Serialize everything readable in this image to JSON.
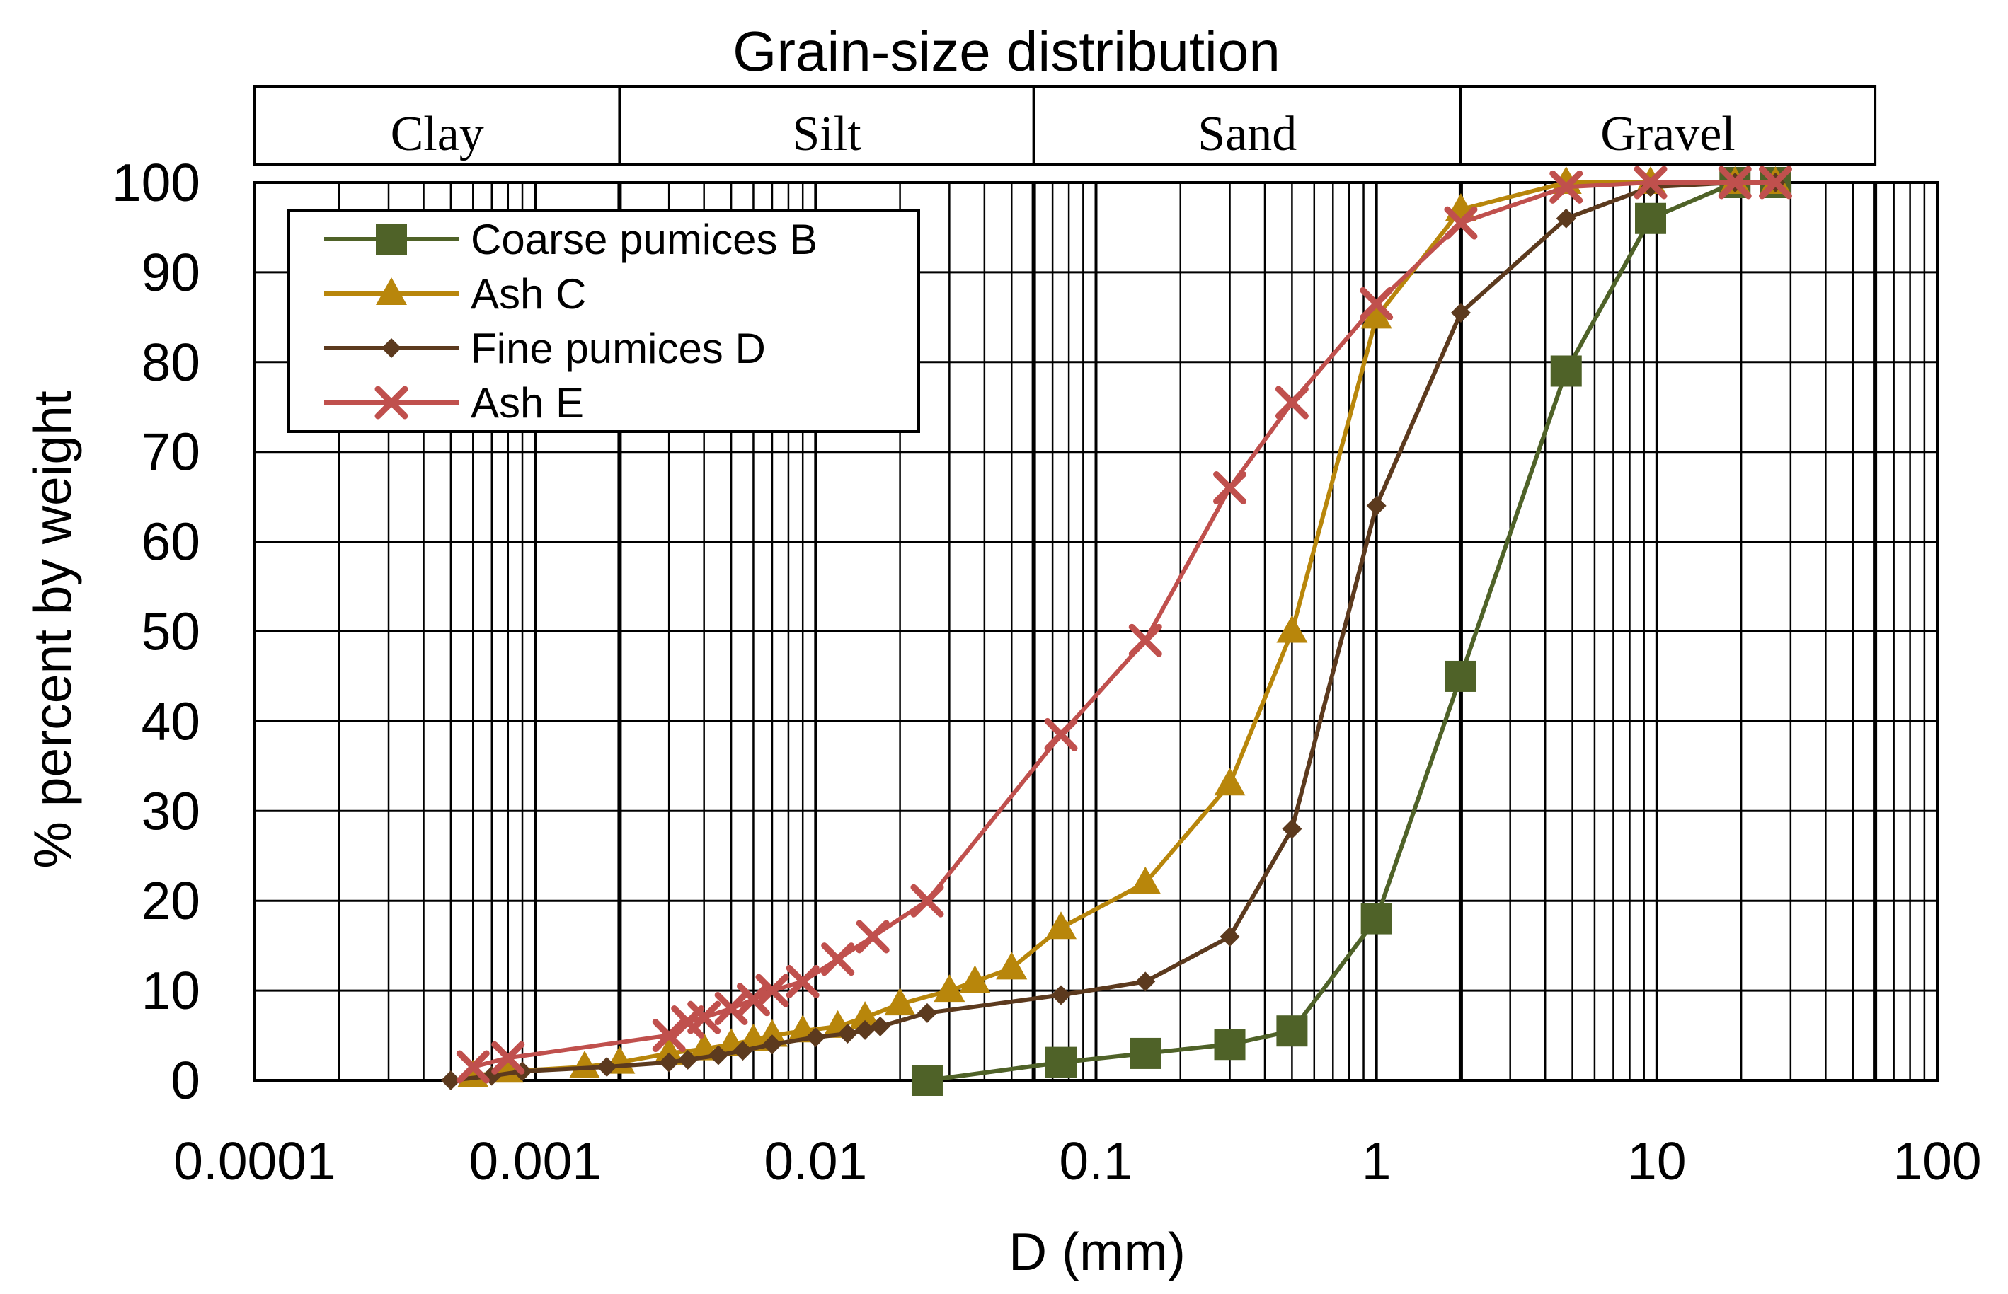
{
  "chart_data": {
    "type": "line",
    "title": "Grain-size distribution",
    "xlabel": "D (mm)",
    "ylabel": "% percent by weight",
    "x_scale": "log",
    "xlim": [
      0.0001,
      100
    ],
    "ylim": [
      0,
      100
    ],
    "x_ticks": [
      "0.0001",
      "0.001",
      "0.01",
      "0.1",
      "1",
      "10",
      "100"
    ],
    "y_ticks": [
      "0",
      "10",
      "20",
      "30",
      "40",
      "50",
      "60",
      "70",
      "80",
      "90",
      "100"
    ],
    "grid": true,
    "legend_position": "top-left",
    "bands": [
      {
        "label": "Clay",
        "from": 0.0001,
        "to": 0.002
      },
      {
        "label": "Silt",
        "from": 0.002,
        "to": 0.06
      },
      {
        "label": "Sand",
        "from": 0.06,
        "to": 2
      },
      {
        "label": "Gravel",
        "from": 2,
        "to": 60
      }
    ],
    "series": [
      {
        "name": "Coarse pumices B",
        "color": "#4f6228",
        "marker": "square",
        "x": [
          0.025,
          0.075,
          0.15,
          0.3,
          0.5,
          1,
          2,
          4.75,
          9.5,
          19,
          26.5
        ],
        "y": [
          0,
          2,
          3,
          4,
          5.5,
          18,
          45,
          79,
          96,
          100,
          100
        ]
      },
      {
        "name": "Ash C",
        "color": "#b8860b",
        "marker": "triangle",
        "x": [
          0.0006,
          0.0008,
          0.0015,
          0.002,
          0.003,
          0.004,
          0.005,
          0.006,
          0.007,
          0.009,
          0.012,
          0.015,
          0.02,
          0.03,
          0.037,
          0.05,
          0.075,
          0.15,
          0.3,
          0.5,
          1,
          2,
          4.75,
          9.5,
          19,
          26.5
        ],
        "y": [
          0.5,
          1,
          1.5,
          2,
          3,
          3.5,
          4,
          4.5,
          5,
          5.5,
          6,
          7,
          8.5,
          10,
          11,
          12.5,
          17,
          22,
          33,
          50,
          85,
          97,
          100,
          100,
          100,
          100
        ]
      },
      {
        "name": "Fine pumices D",
        "color": "#5c3a1e",
        "marker": "diamond",
        "x": [
          0.0005,
          0.0007,
          0.0009,
          0.0018,
          0.003,
          0.0035,
          0.0045,
          0.0055,
          0.007,
          0.01,
          0.013,
          0.015,
          0.017,
          0.025,
          0.075,
          0.15,
          0.3,
          0.5,
          1,
          2,
          4.75,
          9.5,
          19,
          26.5
        ],
        "y": [
          0,
          0.5,
          1,
          1.5,
          2,
          2.3,
          2.8,
          3.3,
          4,
          4.8,
          5.2,
          5.6,
          6,
          7.5,
          9.5,
          11,
          16,
          28,
          64,
          85.5,
          96,
          99.5,
          100,
          100
        ]
      },
      {
        "name": "Ash E",
        "color": "#c0504d",
        "marker": "x",
        "x": [
          0.0006,
          0.0008,
          0.003,
          0.0035,
          0.004,
          0.005,
          0.006,
          0.007,
          0.009,
          0.012,
          0.016,
          0.025,
          0.075,
          0.15,
          0.3,
          0.5,
          1,
          2,
          4.75,
          9.5,
          19,
          26.5
        ],
        "y": [
          1.5,
          2.5,
          5,
          6.5,
          7,
          8,
          9,
          10,
          11,
          13.5,
          16,
          20,
          38.5,
          49,
          66,
          75.5,
          86.5,
          95.5,
          99.5,
          100,
          100,
          100
        ]
      }
    ]
  }
}
